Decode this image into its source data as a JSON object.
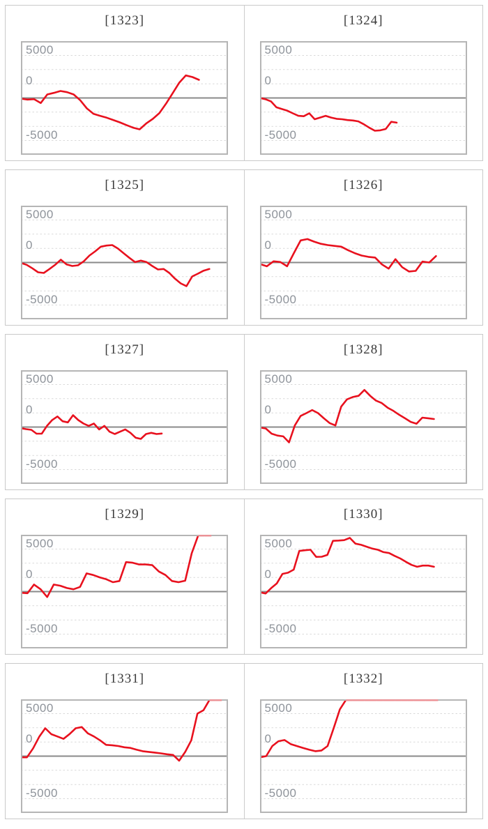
{
  "axis": {
    "labels": [
      "5000",
      "0",
      "-5000"
    ],
    "labeled_values": [
      5000,
      0,
      -5000
    ],
    "ylim": [
      -6700,
      6700
    ],
    "gridline_count": 7,
    "grid_interval": 1667
  },
  "colors": {
    "line": "#e8111e",
    "line_clipped": "#ee9095",
    "grid_dotted": "#d9d9d9",
    "zero_line": "#8a8a8a",
    "plot_border": "#b5b5b5",
    "card_border": "#c9c9c9",
    "axis_label": "#8e939a",
    "title": "#3a3a3a",
    "background": "#ffffff"
  },
  "chart_data": [
    {
      "type": "line",
      "title": "[1323]",
      "x_extent": 0.86,
      "ylim": [
        -6700,
        6700
      ],
      "values": [
        -80,
        -190,
        -140,
        -600,
        410,
        600,
        820,
        680,
        410,
        -270,
        -1230,
        -1860,
        -2100,
        -2320,
        -2590,
        -2870,
        -3190,
        -3490,
        -3690,
        -3000,
        -2460,
        -1770,
        -680,
        550,
        1780,
        2650,
        2460,
        2130
      ]
    },
    {
      "type": "line",
      "title": "[1324]",
      "x_extent": 0.66,
      "ylim": [
        -6700,
        6700
      ],
      "values": [
        0,
        -150,
        -400,
        -1100,
        -1300,
        -1500,
        -1800,
        -2100,
        -2150,
        -1800,
        -2500,
        -2300,
        -2100,
        -2300,
        -2450,
        -2500,
        -2600,
        -2650,
        -2750,
        -3100,
        -3500,
        -3850,
        -3800,
        -3650,
        -2800,
        -2900
      ]
    },
    {
      "type": "line",
      "title": "[1325]",
      "x_extent": 0.91,
      "ylim": [
        -6700,
        6700
      ],
      "values": [
        -50,
        -270,
        -680,
        -1150,
        -1230,
        -760,
        -270,
        330,
        -220,
        -410,
        -330,
        140,
        820,
        1310,
        1860,
        1990,
        2050,
        1640,
        1090,
        550,
        50,
        220,
        50,
        -410,
        -820,
        -760,
        -1230,
        -1910,
        -2460,
        -2780,
        -1640,
        -1310,
        -960,
        -760
      ]
    },
    {
      "type": "line",
      "title": "[1326]",
      "x_extent": 0.85,
      "ylim": [
        -6700,
        6700
      ],
      "values": [
        -190,
        -440,
        140,
        60,
        -440,
        1100,
        2600,
        2750,
        2450,
        2200,
        2050,
        1950,
        1860,
        1450,
        1100,
        820,
        660,
        580,
        -220,
        -720,
        390,
        -550,
        -1060,
        -980,
        110,
        0,
        750
      ]
    },
    {
      "type": "line",
      "title": "[1327]",
      "x_extent": 0.68,
      "ylim": [
        -6700,
        6700
      ],
      "values": [
        -140,
        -250,
        -330,
        -780,
        -780,
        140,
        830,
        1250,
        680,
        550,
        1390,
        820,
        410,
        140,
        410,
        -280,
        140,
        -550,
        -820,
        -550,
        -280,
        -680,
        -1250,
        -1390,
        -820,
        -680,
        -820,
        -760
      ]
    },
    {
      "type": "line",
      "title": "[1328]",
      "x_extent": 0.84,
      "ylim": [
        -6700,
        6700
      ],
      "values": [
        -50,
        -170,
        -780,
        -1000,
        -1100,
        -1800,
        190,
        1300,
        1640,
        2000,
        1640,
        1030,
        470,
        190,
        2400,
        3250,
        3530,
        3670,
        4360,
        3670,
        3110,
        2820,
        2280,
        1900,
        1440,
        1030,
        610,
        390,
        1110,
        1030,
        940
      ]
    },
    {
      "type": "line",
      "title": "[1329]",
      "x_extent": 0.92,
      "ylim": [
        -6700,
        6700
      ],
      "values": [
        -140,
        -190,
        830,
        270,
        -640,
        830,
        690,
        420,
        270,
        550,
        2140,
        1950,
        1670,
        1450,
        1110,
        1250,
        3470,
        3390,
        3190,
        3190,
        3110,
        2360,
        1950,
        1250,
        1110,
        1280,
        4500,
        6700,
        6700,
        6700
      ]
    },
    {
      "type": "line",
      "title": "[1330]",
      "x_extent": 0.84,
      "ylim": [
        -6700,
        6700
      ],
      "values": [
        -80,
        -220,
        420,
        970,
        2080,
        2220,
        2580,
        4780,
        4860,
        4920,
        4080,
        4100,
        4310,
        5970,
        6000,
        6050,
        6310,
        5640,
        5500,
        5280,
        5060,
        4920,
        4640,
        4530,
        4200,
        3890,
        3500,
        3140,
        2920,
        3060,
        3060,
        2920
      ]
    },
    {
      "type": "line",
      "title": "[1331]",
      "x_extent": 0.97,
      "ylim": [
        -6700,
        6700
      ],
      "values": [
        -140,
        -140,
        920,
        2270,
        3280,
        2580,
        2310,
        2030,
        2600,
        3280,
        3420,
        2680,
        2310,
        1860,
        1330,
        1280,
        1190,
        1040,
        970,
        760,
        580,
        500,
        420,
        330,
        220,
        140,
        -530,
        500,
        1860,
        5000,
        5400,
        6700,
        6700,
        6700
      ]
    },
    {
      "type": "line",
      "title": "[1332]",
      "x_extent": 0.86,
      "ylim": [
        -6700,
        6700
      ],
      "values": [
        -140,
        0,
        1190,
        1750,
        1890,
        1420,
        1190,
        970,
        760,
        580,
        660,
        1190,
        3300,
        5500,
        6700,
        6700,
        6700,
        6700,
        6700,
        6700,
        6700,
        6700,
        6700,
        6700,
        6700,
        6700,
        6700,
        6700,
        6700,
        6700
      ]
    }
  ]
}
